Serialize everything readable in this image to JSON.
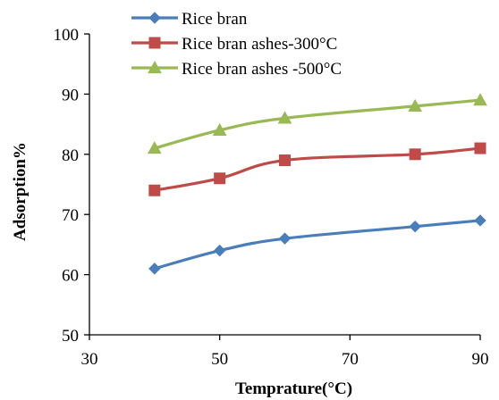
{
  "chart_data": {
    "type": "line",
    "title": "",
    "xlabel": "Temprature(°C)",
    "ylabel": "Adsorption%",
    "xlim": [
      30,
      90
    ],
    "ylim": [
      50,
      100
    ],
    "xticks": [
      30,
      50,
      70,
      90
    ],
    "yticks": [
      50,
      60,
      70,
      80,
      90,
      100
    ],
    "grid": false,
    "legend_position": "top-left",
    "smooth": true,
    "x": [
      40,
      50,
      60,
      80,
      90
    ],
    "series": [
      {
        "name": "Rice bran",
        "values": [
          61,
          64,
          66,
          68,
          69
        ],
        "color": "#4a7ebb",
        "marker": "diamond"
      },
      {
        "name": "Rice bran ashes-300°C",
        "values": [
          74,
          76,
          79,
          80,
          81
        ],
        "color": "#be4b48",
        "marker": "square"
      },
      {
        "name": "Rice bran ashes -500°C",
        "values": [
          81,
          84,
          86,
          88,
          89
        ],
        "color": "#98b954",
        "marker": "triangle"
      }
    ]
  }
}
